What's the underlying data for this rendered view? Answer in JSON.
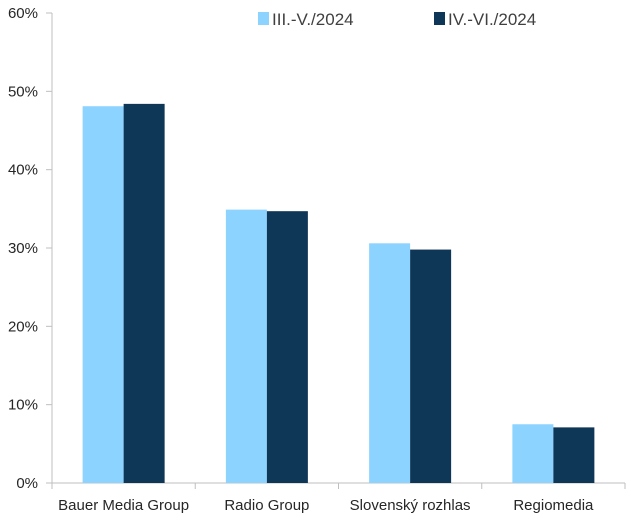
{
  "chart_data": {
    "type": "bar",
    "categories": [
      "Bauer Media Group",
      "Radio Group",
      "Slovenský rozhlas",
      "Regiomedia"
    ],
    "series": [
      {
        "name": "III.-V./2024",
        "values": [
          48.1,
          34.9,
          30.6,
          7.5
        ],
        "color": "#8DD3FF"
      },
      {
        "name": "IV.-VI./2024",
        "values": [
          48.4,
          34.7,
          29.8,
          7.1
        ],
        "color": "#0D3657"
      }
    ],
    "ylim": [
      0,
      60
    ],
    "yticks": [
      0,
      10,
      20,
      30,
      40,
      50,
      60
    ],
    "ytick_labels": [
      "0%",
      "10%",
      "20%",
      "30%",
      "40%",
      "50%",
      "60%"
    ],
    "grid": false,
    "legend_position": "top-right",
    "axis_color": "#BFBFBF"
  }
}
